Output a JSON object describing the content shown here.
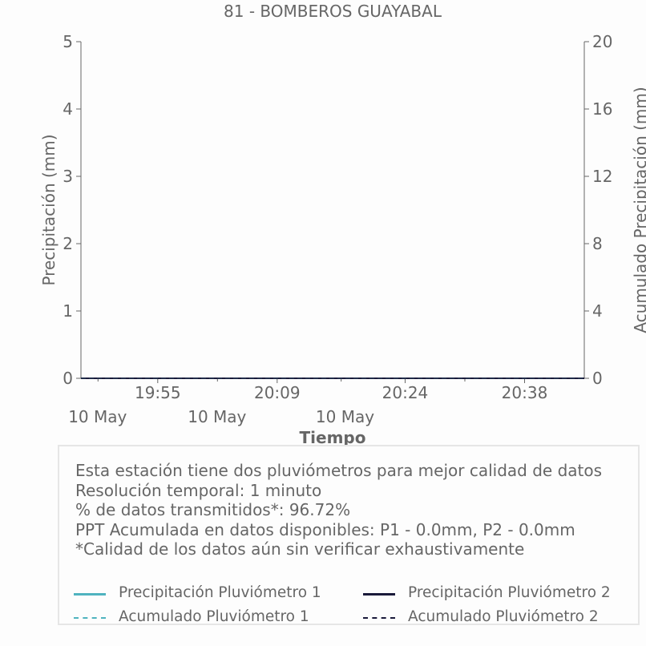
{
  "chart_data": {
    "type": "line",
    "title": "81 - BOMBEROS GUAYABAL",
    "xlabel": "Tiempo",
    "ylabel": "Precipitación (mm)",
    "y2label": "Acumulado Precipitación (mm)",
    "ylim": [
      0,
      5
    ],
    "y2lim": [
      0,
      20
    ],
    "yticks": [
      "0",
      "1",
      "2",
      "3",
      "4",
      "5"
    ],
    "y2ticks": [
      "0",
      "4",
      "8",
      "12",
      "16",
      "20"
    ],
    "xticks": [
      {
        "time": "19:55",
        "date": "10 May"
      },
      {
        "time": "20:09",
        "date": "10 May"
      },
      {
        "time": "20:24",
        "date": "10 May"
      },
      {
        "time": "20:38",
        "date": ""
      }
    ],
    "x_start": "19:46",
    "x_end": "20:45",
    "series": [
      {
        "name": "Precipitación Pluviómetro 1",
        "axis": "left",
        "style": "solid",
        "color": "#4fb3bf",
        "x": [
          "19:46",
          "20:45"
        ],
        "values": [
          0.0,
          0.0
        ]
      },
      {
        "name": "Precipitación Pluviómetro 2",
        "axis": "left",
        "style": "solid",
        "color": "#1a1a3a",
        "x": [
          "19:46",
          "20:45"
        ],
        "values": [
          0.0,
          0.0
        ]
      },
      {
        "name": "Acumulado Pluviómetro 1",
        "axis": "right",
        "style": "dashed",
        "color": "#4fb3bf",
        "x": [
          "19:46",
          "20:45"
        ],
        "values": [
          0.0,
          0.0
        ]
      },
      {
        "name": "Acumulado Pluviómetro 2",
        "axis": "right",
        "style": "dashed",
        "color": "#1a1a3a",
        "x": [
          "19:46",
          "20:45"
        ],
        "values": [
          0.0,
          0.0
        ]
      }
    ]
  },
  "notes": {
    "line1": "Esta estación tiene dos pluviómetros para mejor calidad de datos",
    "line2": "Resolución temporal: 1 minuto",
    "line3": "% de datos transmitidos*: 96.72%",
    "line4": "PPT Acumulada en datos disponibles: P1 - 0.0mm, P2 - 0.0mm",
    "line5": "*Calidad de los datos aún sin verificar exhaustivamente"
  },
  "legend": {
    "p1": "Precipitación Pluviómetro 1",
    "p2": "Precipitación Pluviómetro 2",
    "a1": "Acumulado Pluviómetro 1",
    "a2": "Acumulado Pluviómetro 2"
  },
  "colors": {
    "p1": "#4fb3bf",
    "p2": "#1a1a3a",
    "axis": "#666666",
    "text": "#666666",
    "box_border": "#e6e6e6"
  }
}
